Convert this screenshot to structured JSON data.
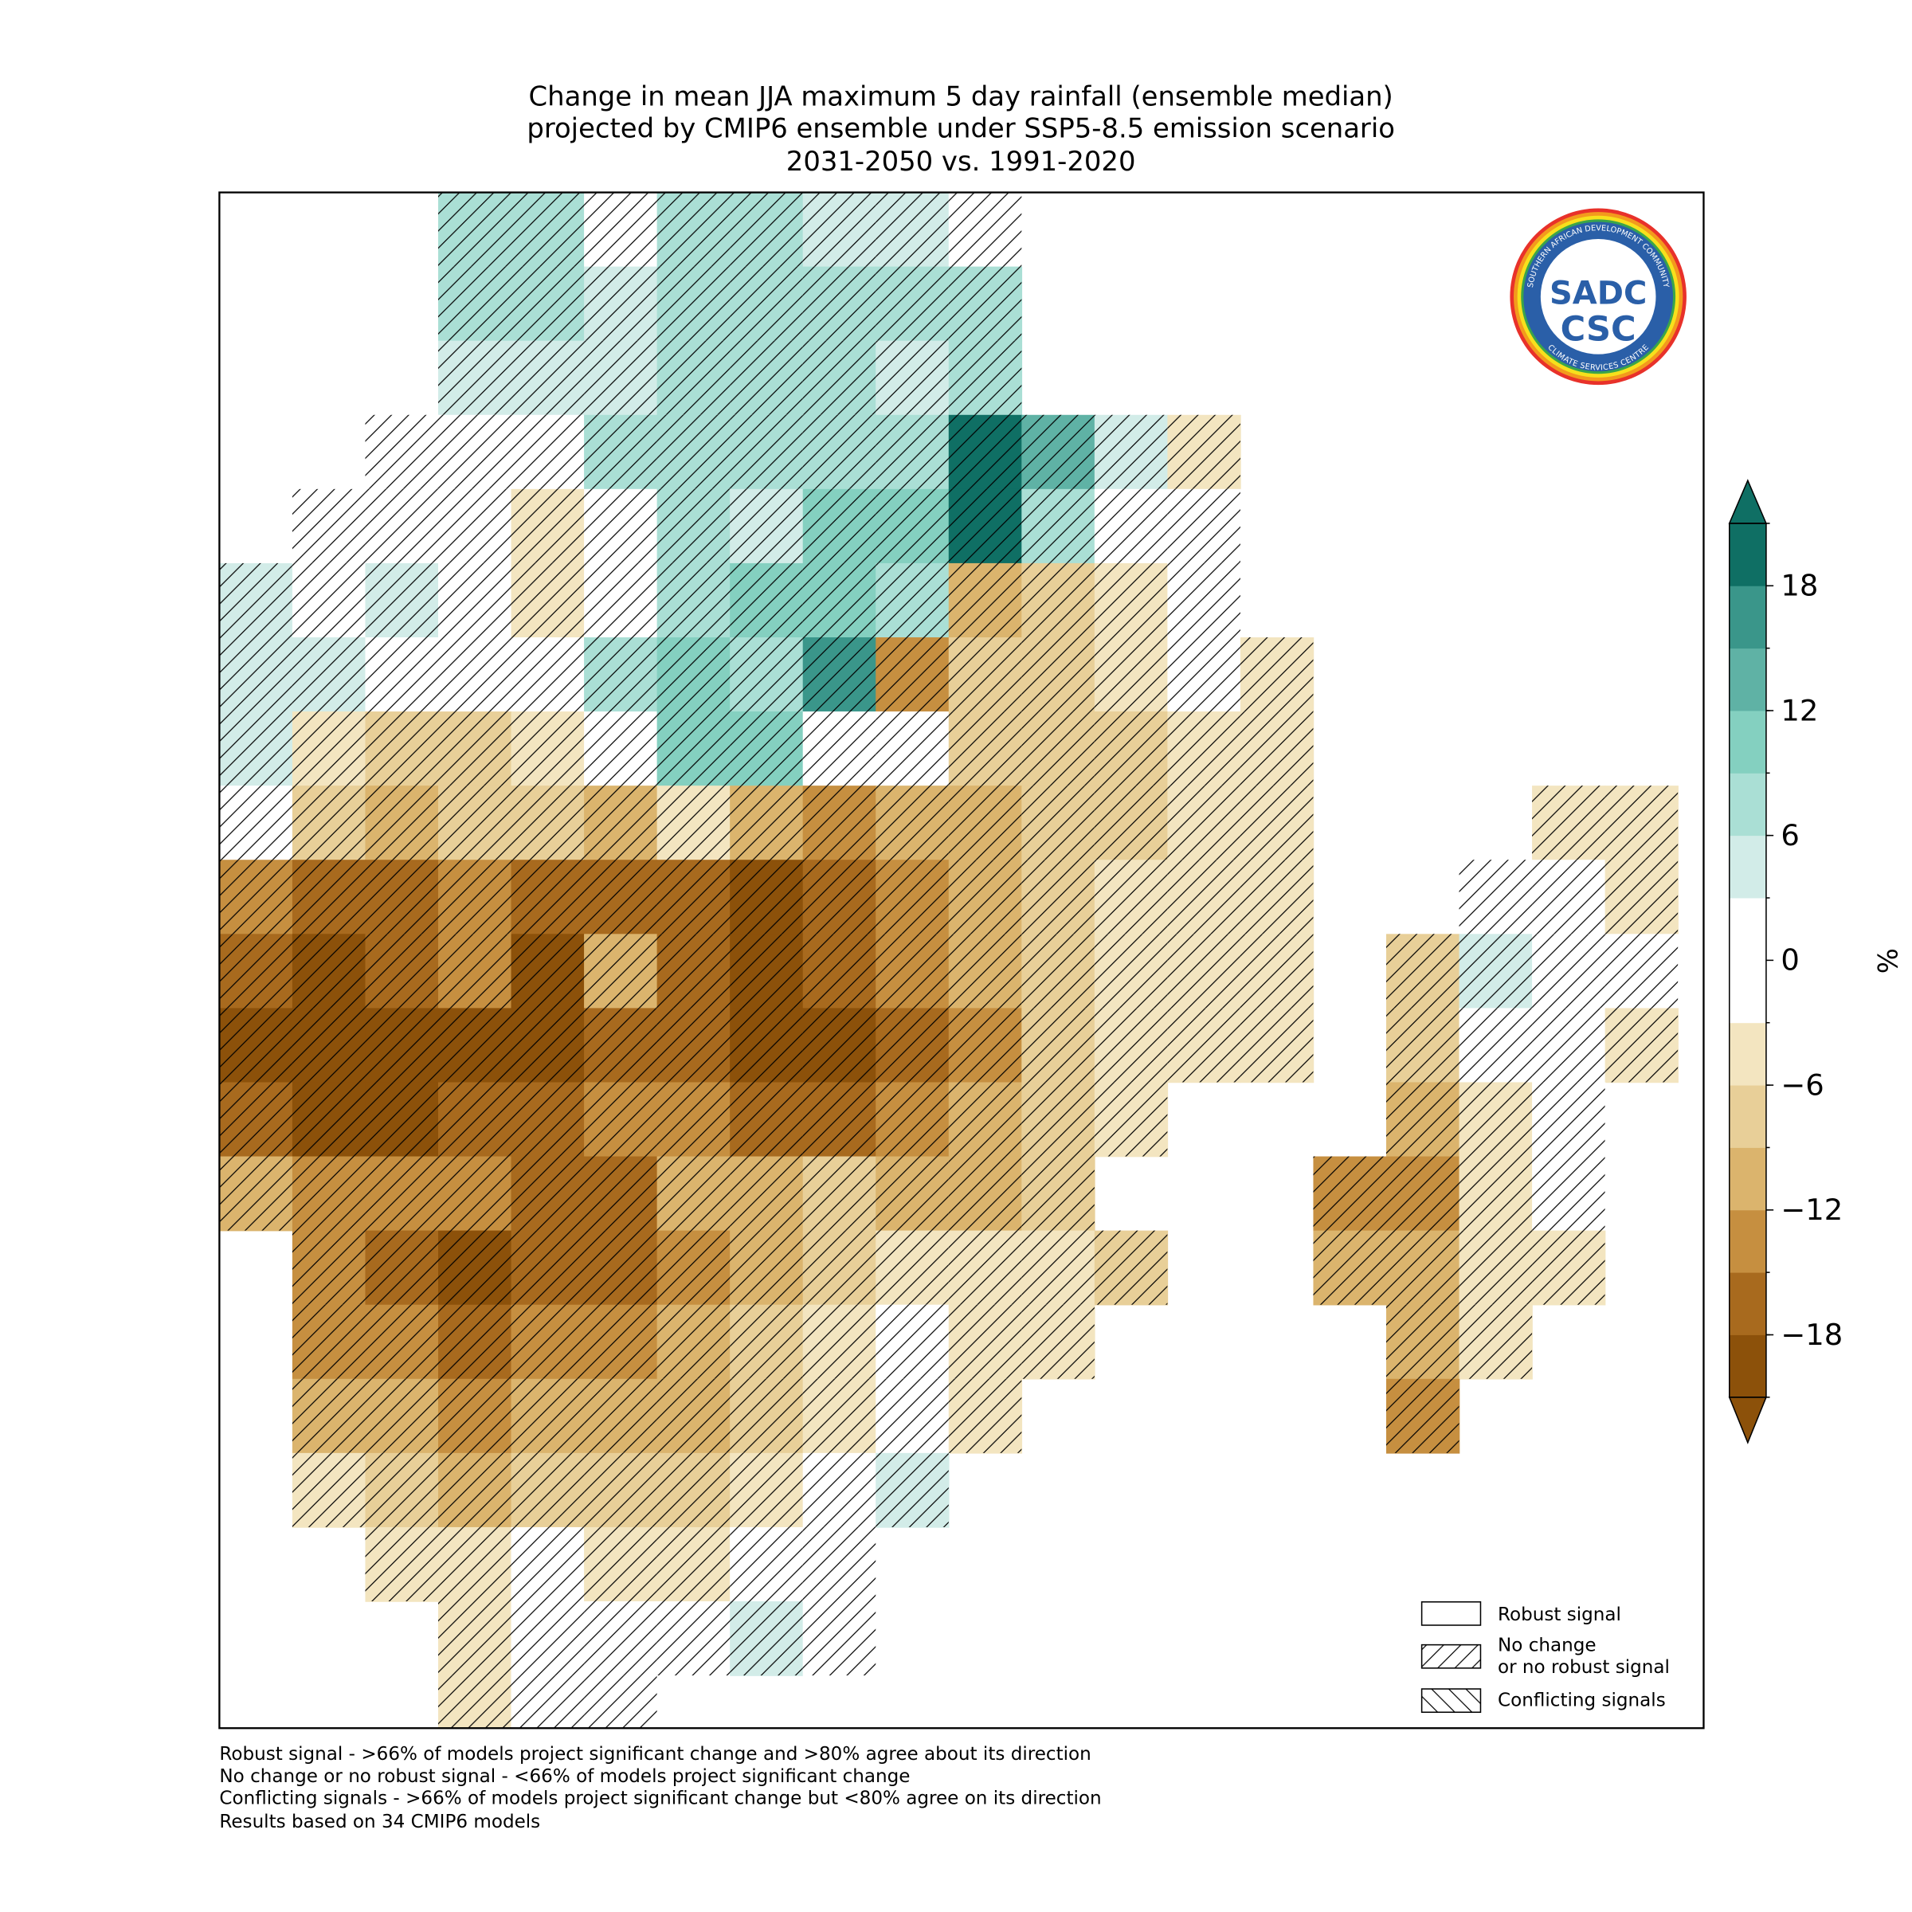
{
  "map": {
    "title": [
      "Change in mean JJA maximum 5 day rainfall (ensemble median)",
      "projected by CMIP6 ensemble under SSP5-8.5 emission scenario",
      "2031-2050 vs. 1991-2020"
    ],
    "cells": [
      [
        null,
        null,
        null,
        8,
        8,
        0,
        8,
        8,
        5,
        5,
        0,
        null,
        null,
        null,
        null,
        null,
        null,
        null,
        null,
        null
      ],
      [
        null,
        null,
        null,
        8,
        8,
        5,
        8,
        8,
        8,
        8,
        8,
        null,
        null,
        null,
        null,
        null,
        null,
        null,
        null,
        null
      ],
      [
        null,
        null,
        null,
        5,
        5,
        5,
        8,
        8,
        8,
        5,
        8,
        null,
        null,
        null,
        null,
        null,
        null,
        null,
        null,
        null
      ],
      [
        null,
        null,
        0,
        0,
        0,
        8,
        8,
        8,
        8,
        8,
        20,
        14,
        5,
        -5,
        null,
        null,
        null,
        null,
        null,
        null
      ],
      [
        null,
        0,
        0,
        0,
        -5,
        0,
        8,
        5,
        11,
        11,
        20,
        8,
        0,
        0,
        null,
        null,
        null,
        null,
        null,
        null
      ],
      [
        5,
        0,
        5,
        0,
        -5,
        0,
        8,
        11,
        11,
        8,
        -11,
        -8,
        -5,
        0,
        null,
        null,
        null,
        null,
        null,
        null
      ],
      [
        5,
        5,
        0,
        0,
        0,
        8,
        11,
        8,
        17,
        -14,
        -8,
        -8,
        -5,
        0,
        -5,
        null,
        null,
        null,
        null,
        null
      ],
      [
        5,
        -5,
        -8,
        -8,
        -5,
        0,
        11,
        11,
        0,
        0,
        -8,
        -8,
        -8,
        -5,
        -5,
        null,
        null,
        null,
        null,
        null
      ],
      [
        0,
        -8,
        -11,
        -8,
        -8,
        -11,
        -5,
        -11,
        -14,
        -11,
        -11,
        -8,
        -8,
        -5,
        -5,
        null,
        null,
        null,
        -5,
        -5
      ],
      [
        -14,
        -17,
        -17,
        -14,
        -17,
        -17,
        -17,
        -20,
        -17,
        -14,
        -11,
        -8,
        -5,
        -5,
        -5,
        null,
        null,
        0,
        0,
        -5
      ],
      [
        -17,
        -20,
        -17,
        -14,
        -20,
        -11,
        -17,
        -20,
        -17,
        -14,
        -11,
        -8,
        -5,
        -5,
        -5,
        null,
        -8,
        5,
        0,
        0
      ],
      [
        -20,
        -20,
        -20,
        -20,
        -20,
        -17,
        -17,
        -20,
        -20,
        -17,
        -14,
        -8,
        -5,
        -5,
        -5,
        null,
        -8,
        0,
        0,
        -5
      ],
      [
        -17,
        -20,
        -20,
        -17,
        -17,
        -14,
        -14,
        -17,
        -17,
        -14,
        -11,
        -8,
        -5,
        null,
        null,
        null,
        -11,
        -5,
        0,
        null
      ],
      [
        -11,
        -14,
        -14,
        -14,
        -17,
        -17,
        -11,
        -11,
        -8,
        -11,
        -11,
        -8,
        null,
        null,
        null,
        -14,
        -14,
        -5,
        0,
        null
      ],
      [
        null,
        -14,
        -17,
        -20,
        -17,
        -17,
        -14,
        -11,
        -8,
        -5,
        -5,
        -5,
        -8,
        null,
        null,
        -11,
        -11,
        -5,
        -5,
        null
      ],
      [
        null,
        -14,
        -14,
        -17,
        -14,
        -14,
        -11,
        -8,
        -5,
        0,
        -5,
        -5,
        null,
        null,
        null,
        null,
        -11,
        -5,
        null,
        null
      ],
      [
        null,
        -11,
        -11,
        -14,
        -11,
        -11,
        -11,
        -8,
        -5,
        0,
        -5,
        null,
        null,
        null,
        null,
        null,
        -14,
        null,
        null,
        null
      ],
      [
        null,
        -5,
        -8,
        -11,
        -8,
        -8,
        -8,
        -5,
        0,
        5,
        null,
        null,
        null,
        null,
        null,
        null,
        null,
        null,
        null,
        null
      ],
      [
        null,
        null,
        -5,
        -5,
        0,
        -5,
        -5,
        0,
        0,
        null,
        null,
        null,
        null,
        null,
        null,
        null,
        null,
        null,
        null,
        null
      ],
      [
        null,
        null,
        null,
        -5,
        0,
        0,
        0,
        5,
        0,
        null,
        null,
        null,
        null,
        null,
        null,
        null,
        null,
        null,
        null,
        null
      ],
      [
        null,
        null,
        null,
        -5,
        0,
        0,
        null,
        null,
        null,
        null,
        null,
        null,
        null,
        null,
        null,
        null,
        null,
        null,
        null,
        null
      ]
    ],
    "colorbar": {
      "boundaries": [
        -21,
        -18,
        -15,
        -12,
        -9,
        -6,
        -3,
        3,
        6,
        9,
        12,
        15,
        18,
        21
      ],
      "colors": [
        "#8c510a",
        "#a86a1e",
        "#c68f40",
        "#dbb46d",
        "#e8cf98",
        "#f3e5c0",
        "#ffffff",
        "#d2ece8",
        "#aadfd5",
        "#84d0c0",
        "#5fb2a5",
        "#3a968a",
        "#0f6f64"
      ],
      "ticks": [
        {
          "value": -18,
          "label": "−18"
        },
        {
          "value": -12,
          "label": "−12"
        },
        {
          "value": -6,
          "label": "−6"
        },
        0,
        6,
        12,
        18
      ],
      "label": "%"
    },
    "legend": [
      {
        "label": [
          "Robust signal"
        ]
      },
      {
        "label": [
          "No change",
          "or no robust signal"
        ]
      },
      {
        "label": [
          "Conflicting signals"
        ]
      }
    ],
    "footnotes": [
      "Robust signal - >66% of models project significant change and >80% agree about its direction",
      "No change or no robust signal - <66% of models project significant change",
      "Conflicting signals - >66% of models project significant change but <80% agree on its direction",
      "Results based on 34 CMIP6 models"
    ],
    "logo": {
      "ring_top": "SOUTHERN AFRICAN DEVELOPMENT COMMUNITY",
      "ring_bottom": "CLIMATE SERVICES CENTRE",
      "top": "SADC",
      "bottom": "CSC"
    }
  }
}
